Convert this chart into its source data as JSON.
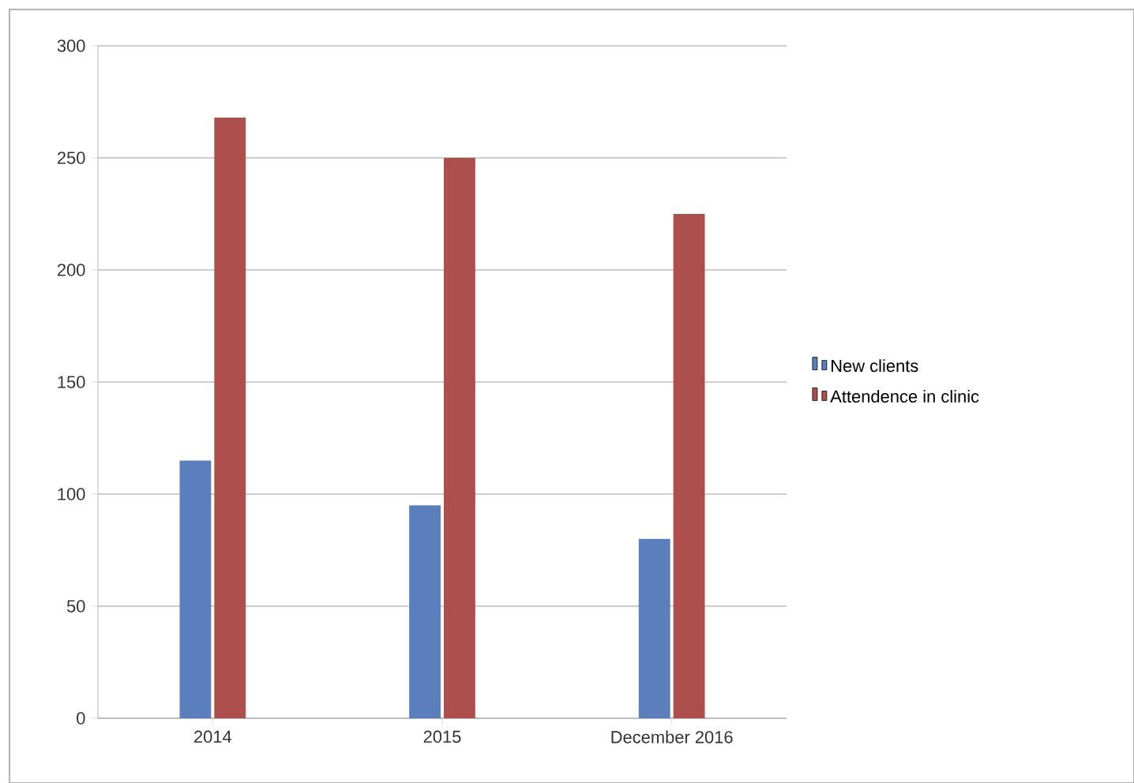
{
  "chart_data": {
    "type": "bar",
    "categories": [
      "2014",
      "2015",
      "December 2016"
    ],
    "series": [
      {
        "name": "New clients",
        "color": "#5b7fbd",
        "values": [
          115,
          95,
          80
        ]
      },
      {
        "name": "Attendence in clinic",
        "color": "#ad4f4d",
        "values": [
          268,
          250,
          225
        ]
      }
    ],
    "ylim": [
      0,
      300
    ],
    "yticks": [
      0,
      50,
      100,
      150,
      200,
      250,
      300
    ],
    "grid": "y",
    "legend": "right"
  }
}
